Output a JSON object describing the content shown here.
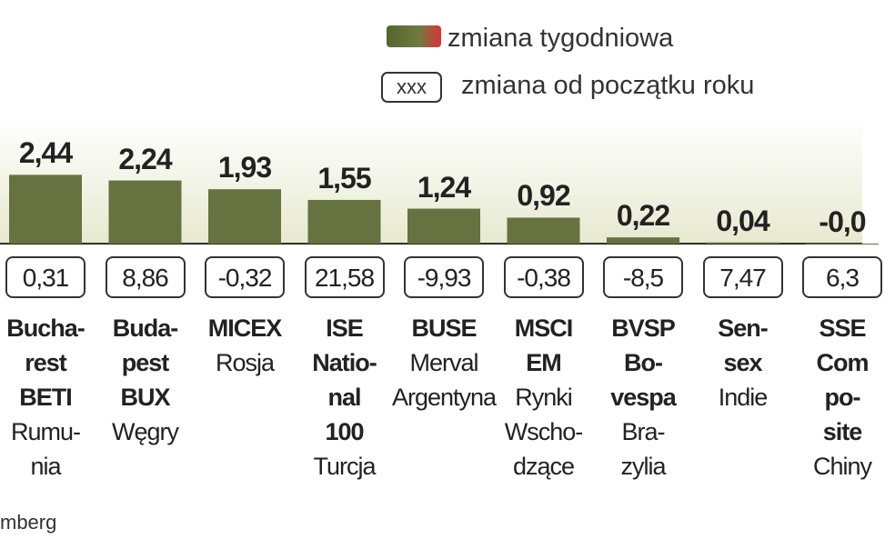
{
  "chart_data": {
    "type": "bar",
    "legend": [
      "zmiana tygodniowa",
      "zmiana od początku roku"
    ],
    "legend_box_label": "xxx",
    "categories": [
      "Bucha-\nrest\nBETI",
      "Buda-\npest\nBUX",
      "MICEX",
      "ISE\nNatio-\nnal\n100",
      "BUSE",
      "MSCI\nEM",
      "BVSP\nBo-\nvespa",
      "Sen-\nsex",
      "SSE\nCom\npo-\nsite"
    ],
    "countries": [
      "Rumu-\nnia",
      "Węgry",
      "Rosja",
      "Turcja",
      "Merval\nArgentyna",
      "Rynki\nWscho-\ndzące",
      "Bra-\nzylia",
      "Indie",
      "Chiny"
    ],
    "values": [
      2.44,
      2.24,
      1.93,
      1.55,
      1.24,
      0.92,
      0.22,
      0.04,
      -0.02
    ],
    "value_labels": [
      "2,44",
      "2,24",
      "1,93",
      "1,55",
      "1,24",
      "0,92",
      "0,22",
      "0,04",
      "-0,0"
    ],
    "ytd_values": [
      0.31,
      8.86,
      -0.32,
      21.58,
      -9.93,
      -0.38,
      -8.5,
      7.47,
      6.3
    ],
    "ytd_labels": [
      "0,31",
      "8,86",
      "-0,32",
      "21,58",
      "-9,93",
      "-0,38",
      "-8,5",
      "7,47",
      "6,3"
    ],
    "color": "#66723f",
    "ylim": [
      0,
      4
    ],
    "source": "mberg"
  }
}
